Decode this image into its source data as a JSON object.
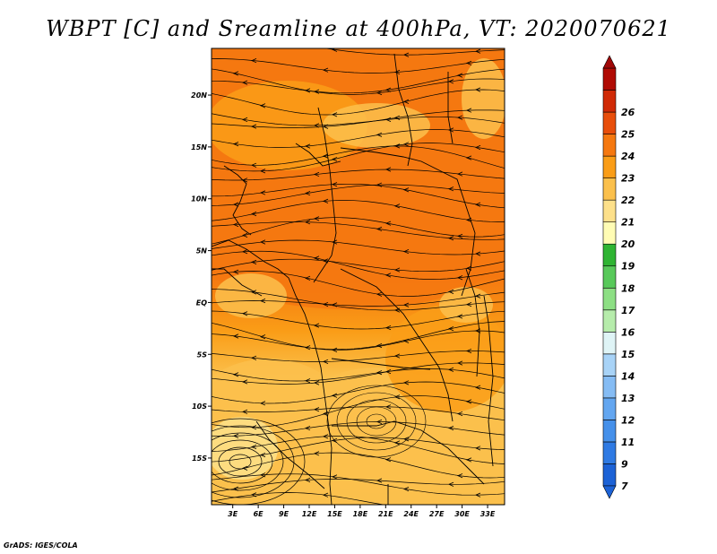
{
  "chart_data": {
    "type": "heatmap",
    "title": "WBPT [C] and Sreamline at 400hPa, VT: 2020070621",
    "x_tick_labels": [
      "3E",
      "6E",
      "9E",
      "12E",
      "15E",
      "18E",
      "21E",
      "24E",
      "27E",
      "30E",
      "33E"
    ],
    "y_tick_labels": [
      "20N",
      "15N",
      "10N",
      "5N",
      "EQ",
      "5S",
      "10S",
      "15S"
    ],
    "x_range": [
      0.5,
      35
    ],
    "y_range": [
      -19.5,
      24.5
    ],
    "colorbar": {
      "labels": [
        "7",
        "9",
        "11",
        "12",
        "13",
        "14",
        "15",
        "16",
        "17",
        "18",
        "19",
        "20",
        "21",
        "22",
        "23",
        "24",
        "25",
        "26"
      ],
      "colors": [
        "#1c62d6",
        "#2f7ae3",
        "#4590ea",
        "#63a6f0",
        "#85bcf4",
        "#a8d3f7",
        "#dff4f6",
        "#b6ecab",
        "#8ddf84",
        "#58c95a",
        "#2fb433",
        "#fffcb4",
        "#fde08a",
        "#fbc04c",
        "#fa9d17",
        "#f57810",
        "#e84e0b",
        "#d02a06",
        "#b00b04"
      ]
    },
    "fields": [
      {
        "name": "WBPT",
        "units": "C"
      },
      {
        "name": "Streamline",
        "level": "400hPa"
      }
    ],
    "valid_time": "2020070621"
  },
  "footer": {
    "credit": "GrADS: IGES/COLA"
  }
}
